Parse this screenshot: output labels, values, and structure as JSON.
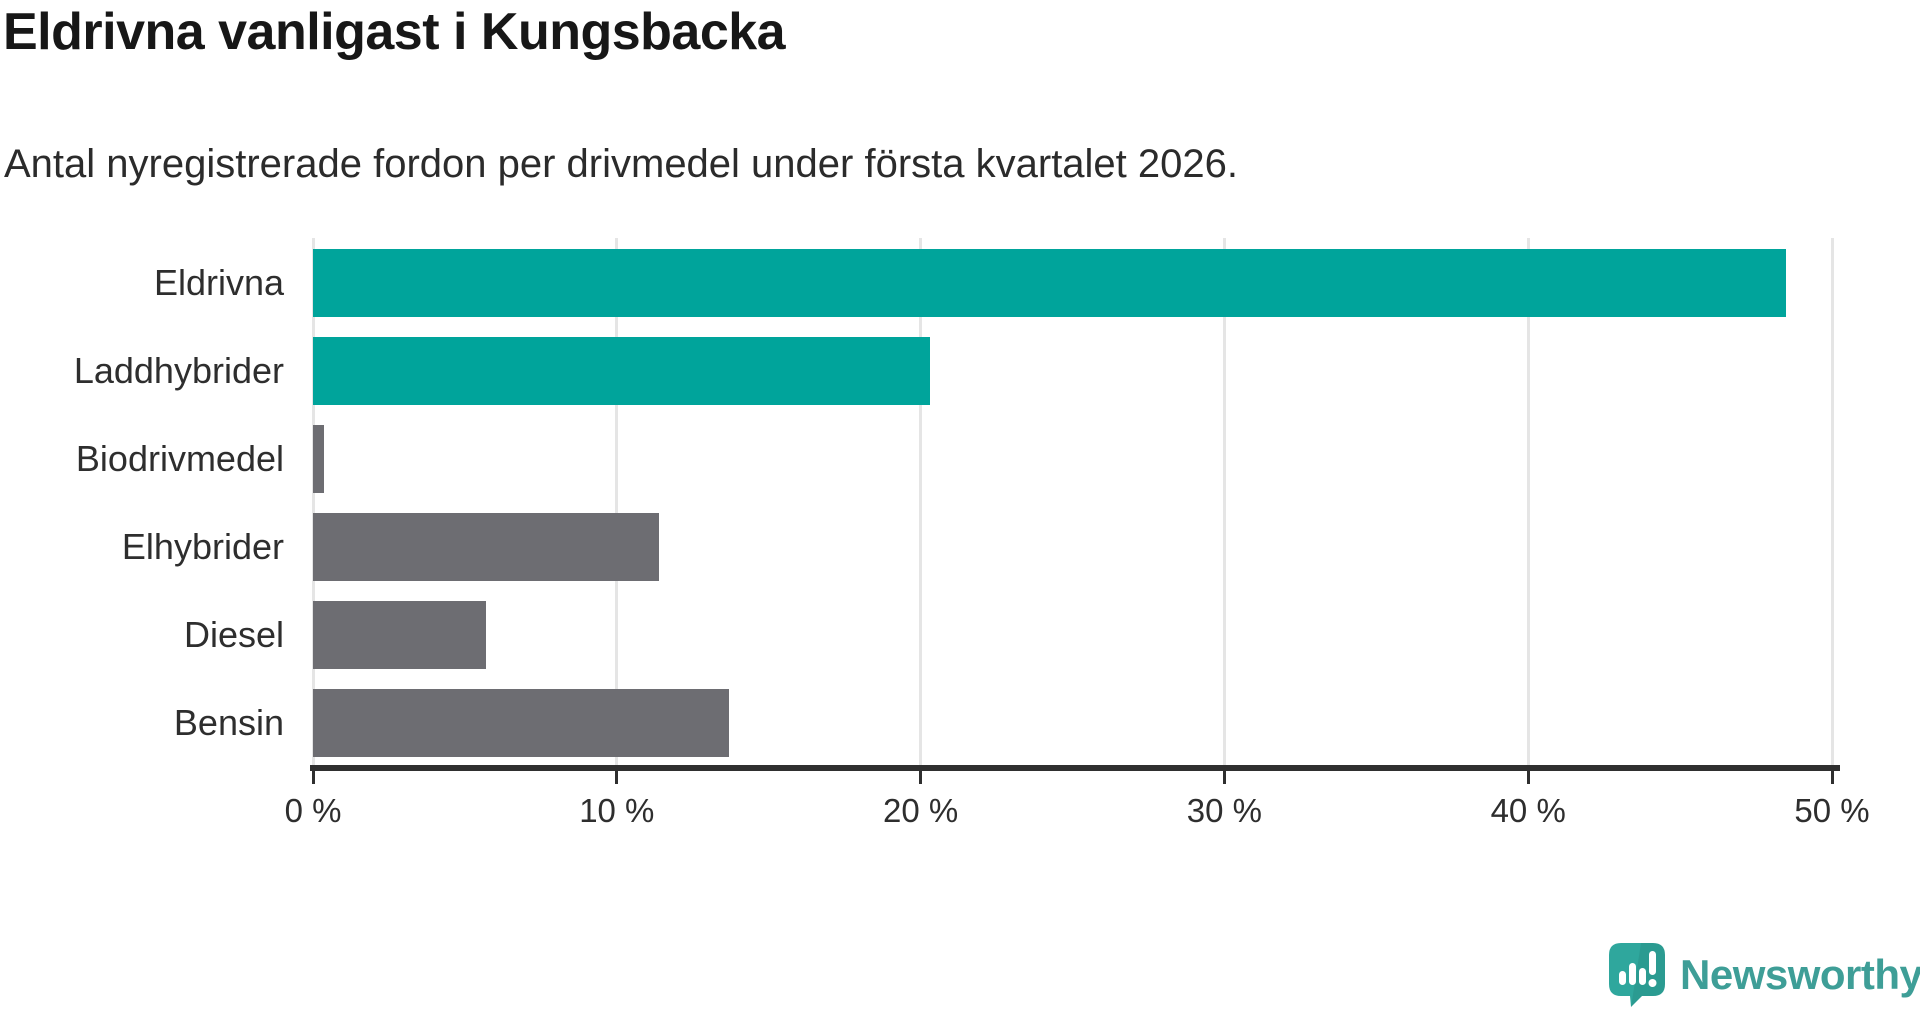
{
  "chart_data": {
    "type": "bar",
    "orientation": "horizontal",
    "title": "Eldrivna vanligast i Kungsbacka",
    "subtitle": "Antal nyregistrerade fordon per drivmedel under första kvartalet 2026.",
    "categories": [
      "Eldrivna",
      "Laddhybrider",
      "Biodrivmedel",
      "Elhybrider",
      "Diesel",
      "Bensin"
    ],
    "values": [
      48.5,
      20.3,
      0.35,
      11.4,
      5.7,
      13.7
    ],
    "unit": "%",
    "bar_colors": [
      "#00a49b",
      "#00a49b",
      "#6d6d72",
      "#6d6d72",
      "#6d6d72",
      "#6d6d72"
    ],
    "highlight_color": "#00a49b",
    "default_color": "#6d6d72",
    "xlabel": "",
    "ylabel": "",
    "xlim": [
      0,
      50
    ],
    "x_ticks": [
      0,
      10,
      20,
      30,
      40,
      50
    ],
    "x_tick_labels": [
      "0 %",
      "10 %",
      "20 %",
      "30 %",
      "40 %",
      "50 %"
    ],
    "grid": "vertical-gridlines-on",
    "legend": "none"
  },
  "branding": {
    "wordmark": "Newsworthy",
    "icon_color": "#2fa79d",
    "wordmark_color": "#3e9e97"
  }
}
